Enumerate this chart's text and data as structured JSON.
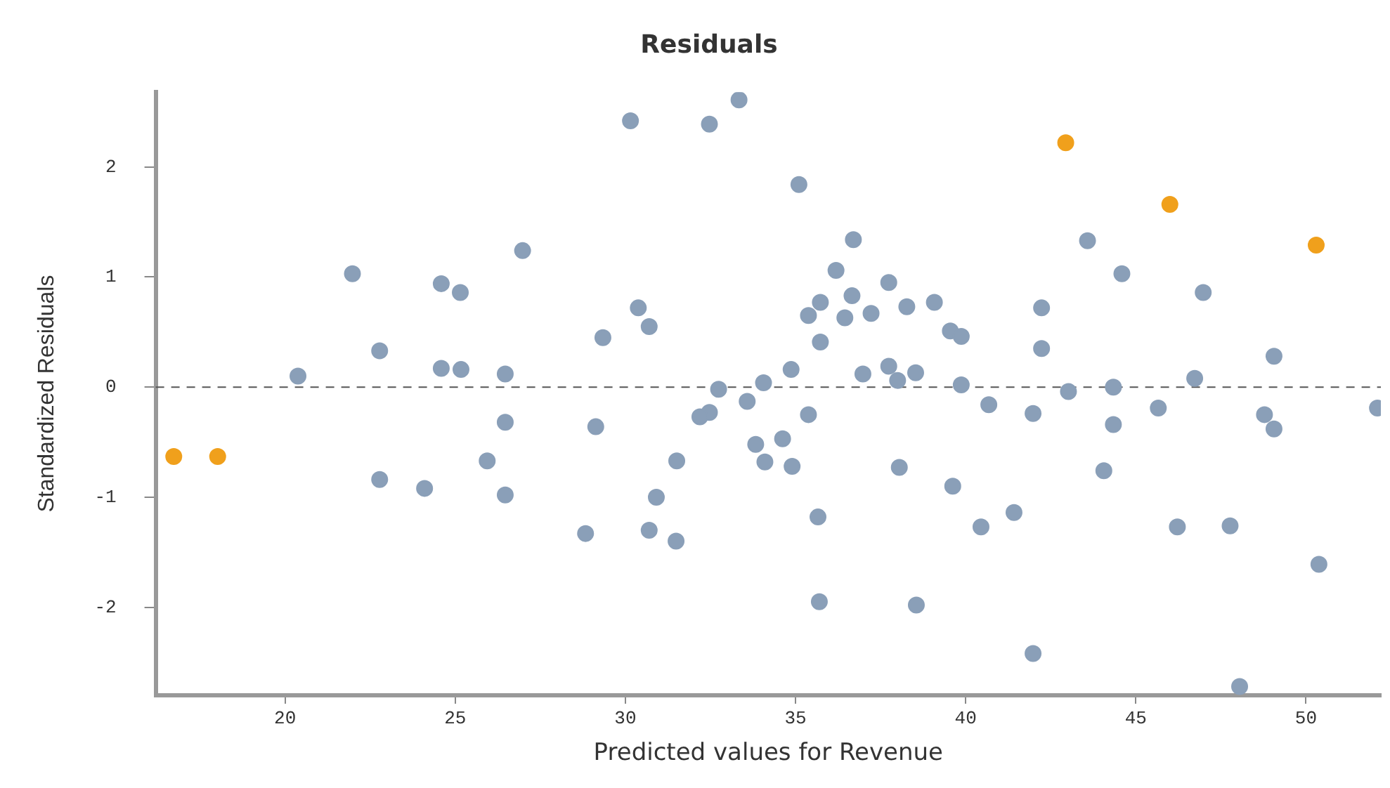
{
  "chart_data": {
    "type": "scatter",
    "title": "Residuals",
    "xlabel": "Predicted values for Revenue",
    "ylabel": "Standardized Residuals",
    "xlim": [
      16.2,
      52.2
    ],
    "xticks": [
      20,
      25,
      30,
      35,
      40,
      45,
      50
    ],
    "ylim": [
      -2.8,
      2.68
    ],
    "yticks": [
      -2,
      -1,
      0,
      1,
      2
    ],
    "grid": false,
    "legend": false,
    "marker": "circle",
    "ref_lines": [
      {
        "axis": "y",
        "value": 0,
        "line_style": "dashed",
        "color": "#555555"
      }
    ],
    "series": [
      {
        "color": "#8a9fb8",
        "x": [
          20.38,
          21.98,
          22.78,
          22.78,
          24.1,
          24.59,
          25.15,
          24.59,
          25.17,
          26.47,
          26.47,
          25.94,
          26.47,
          26.98,
          30.15,
          32.47,
          33.34,
          35.1,
          36.7,
          36.19,
          37.74,
          36.66,
          35.73,
          38.27,
          39.08,
          35.38,
          36.45,
          37.22,
          30.38,
          30.7,
          29.34,
          35.73,
          39.55,
          39.87,
          34.87,
          36.98,
          37.74,
          38.53,
          38.0,
          39.87,
          34.06,
          32.74,
          33.58,
          35.38,
          32.47,
          32.19,
          29.13,
          33.83,
          34.62,
          34.1,
          34.9,
          31.51,
          38.05,
          30.91,
          39.62,
          28.83,
          30.7,
          31.49,
          35.66,
          35.7,
          38.55,
          43.58,
          44.59,
          42.23,
          46.98,
          42.23,
          49.06,
          46.73,
          43.02,
          44.34,
          40.68,
          41.98,
          45.66,
          48.78,
          49.06,
          44.34,
          52.1,
          44.06,
          40.45,
          41.42,
          46.22,
          47.77,
          50.38,
          41.98,
          48.05
        ],
        "values": [
          0.1,
          1.03,
          0.33,
          -0.84,
          -0.92,
          0.94,
          0.86,
          0.17,
          0.16,
          0.12,
          -0.32,
          -0.67,
          -0.98,
          1.24,
          2.42,
          2.39,
          2.61,
          1.84,
          1.34,
          1.06,
          0.95,
          0.83,
          0.77,
          0.73,
          0.77,
          0.65,
          0.63,
          0.67,
          0.72,
          0.55,
          0.45,
          0.41,
          0.51,
          0.46,
          0.16,
          0.12,
          0.19,
          0.13,
          0.06,
          0.02,
          0.04,
          -0.02,
          -0.13,
          -0.25,
          -0.23,
          -0.27,
          -0.36,
          -0.52,
          -0.47,
          -0.68,
          -0.72,
          -0.67,
          -0.73,
          -1.0,
          -0.9,
          -1.33,
          -1.3,
          -1.4,
          -1.18,
          -1.95,
          -1.98,
          1.33,
          1.03,
          0.72,
          0.86,
          0.35,
          0.28,
          0.08,
          -0.04,
          0.0,
          -0.16,
          -0.24,
          -0.19,
          -0.25,
          -0.38,
          -0.34,
          -0.19,
          -0.76,
          -1.27,
          -1.14,
          -1.27,
          -1.26,
          -1.61,
          -2.42,
          -2.72
        ]
      },
      {
        "color": "#f0a01c",
        "x": [
          16.73,
          18.02,
          42.94,
          46.0,
          50.3
        ],
        "values": [
          -0.63,
          -0.63,
          2.22,
          1.66,
          1.29
        ]
      }
    ]
  }
}
